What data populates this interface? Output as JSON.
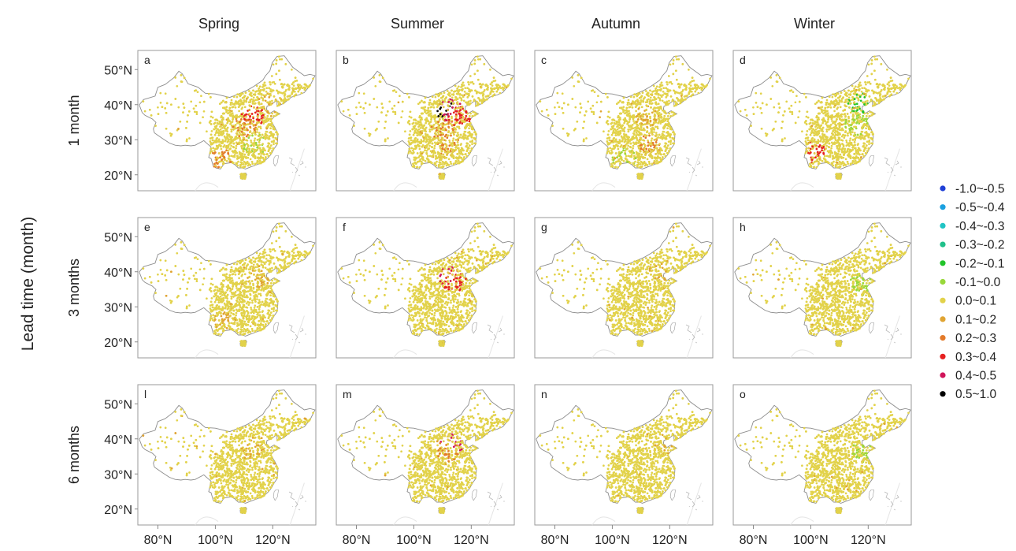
{
  "figure": {
    "y_axis_title": "Lead time (month)",
    "column_titles": [
      "Spring",
      "Summer",
      "Autumn",
      "Winter"
    ],
    "row_titles": [
      "1 month",
      "3 months",
      "6 months"
    ],
    "y_ticks": [
      "50°N",
      "40°N",
      "30°N",
      "20°N"
    ],
    "x_ticks": [
      "80°N",
      "100°N",
      "120°N"
    ],
    "panel_letters": [
      [
        "a",
        "b",
        "c",
        "d"
      ],
      [
        "e",
        "f",
        "g",
        "h"
      ],
      [
        "l",
        "m",
        "n",
        "o"
      ]
    ]
  },
  "legend": {
    "items": [
      {
        "label": "-1.0~-0.5",
        "color": "#1f3fd6"
      },
      {
        "label": "-0.5~-0.4",
        "color": "#1aa0e0"
      },
      {
        "label": "-0.4~-0.3",
        "color": "#20c4c4"
      },
      {
        "label": "-0.3~-0.2",
        "color": "#20c08a"
      },
      {
        "label": "-0.2~-0.1",
        "color": "#22c42a"
      },
      {
        "label": "-0.1~0.0",
        "color": "#98d83a"
      },
      {
        "label": "0.0~0.1",
        "color": "#e2d24a"
      },
      {
        "label": "0.1~0.2",
        "color": "#e0a432"
      },
      {
        "label": "0.2~0.3",
        "color": "#e37a2a"
      },
      {
        "label": "0.3~0.4",
        "color": "#e62020"
      },
      {
        "label": "0.4~0.5",
        "color": "#d0145a"
      },
      {
        "label": "0.5~1.0",
        "color": "#000000"
      }
    ]
  },
  "panels": [
    {
      "id": "a",
      "hotspots": [
        {
          "lat": 36,
          "lon": 113,
          "class": 9,
          "density": 0.6
        },
        {
          "lat": 33,
          "lon": 110,
          "class": 8,
          "density": 0.5
        },
        {
          "lat": 28,
          "lon": 114,
          "class": 5,
          "density": 0.35
        },
        {
          "lat": 24,
          "lon": 102,
          "class": 8,
          "density": 0.5
        },
        {
          "lat": 40,
          "lon": 119,
          "class": 7,
          "density": 0.5
        }
      ]
    },
    {
      "id": "b",
      "hotspots": [
        {
          "lat": 38,
          "lon": 113,
          "class": 10,
          "density": 0.7
        },
        {
          "lat": 38,
          "lon": 112,
          "class": 11,
          "density": 0.25
        },
        {
          "lat": 36,
          "lon": 116,
          "class": 9,
          "density": 0.6
        },
        {
          "lat": 32,
          "lon": 110,
          "class": 8,
          "density": 0.5
        },
        {
          "lat": 28,
          "lon": 112,
          "class": 8,
          "density": 0.35
        }
      ]
    },
    {
      "id": "c",
      "hotspots": [
        {
          "lat": 36,
          "lon": 112,
          "class": 7,
          "density": 0.45
        },
        {
          "lat": 28,
          "lon": 113,
          "class": 8,
          "density": 0.45
        },
        {
          "lat": 24,
          "lon": 104,
          "class": 5,
          "density": 0.3
        }
      ]
    },
    {
      "id": "d",
      "hotspots": [
        {
          "lat": 40,
          "lon": 117,
          "class": 4,
          "density": 0.6
        },
        {
          "lat": 34,
          "lon": 116,
          "class": 5,
          "density": 0.5
        },
        {
          "lat": 26,
          "lon": 102,
          "class": 9,
          "density": 0.45
        }
      ]
    },
    {
      "id": "e",
      "hotspots": [
        {
          "lat": 38,
          "lon": 115,
          "class": 7,
          "density": 0.5
        },
        {
          "lat": 26,
          "lon": 103,
          "class": 7,
          "density": 0.4
        }
      ]
    },
    {
      "id": "f",
      "hotspots": [
        {
          "lat": 38,
          "lon": 113,
          "class": 10,
          "density": 0.6
        },
        {
          "lat": 37,
          "lon": 114,
          "class": 9,
          "density": 0.5
        }
      ]
    },
    {
      "id": "g",
      "hotspots": [
        {
          "lat": 39,
          "lon": 117,
          "class": 7,
          "density": 0.35
        }
      ]
    },
    {
      "id": "h",
      "hotspots": [
        {
          "lat": 36,
          "lon": 117,
          "class": 5,
          "density": 0.55
        }
      ]
    },
    {
      "id": "l",
      "hotspots": [
        {
          "lat": 37,
          "lon": 113,
          "class": 7,
          "density": 0.4
        }
      ]
    },
    {
      "id": "m",
      "hotspots": [
        {
          "lat": 38,
          "lon": 113,
          "class": 10,
          "density": 0.5
        },
        {
          "lat": 36,
          "lon": 112,
          "class": 8,
          "density": 0.35
        }
      ]
    },
    {
      "id": "n",
      "hotspots": [
        {
          "lat": 38,
          "lon": 118,
          "class": 7,
          "density": 0.3
        }
      ]
    },
    {
      "id": "o",
      "hotspots": [
        {
          "lat": 36,
          "lon": 117,
          "class": 5,
          "density": 0.35
        }
      ]
    }
  ],
  "map_extent": {
    "lon_min": 73,
    "lon_max": 135,
    "lat_min": 15,
    "lat_max": 55
  }
}
